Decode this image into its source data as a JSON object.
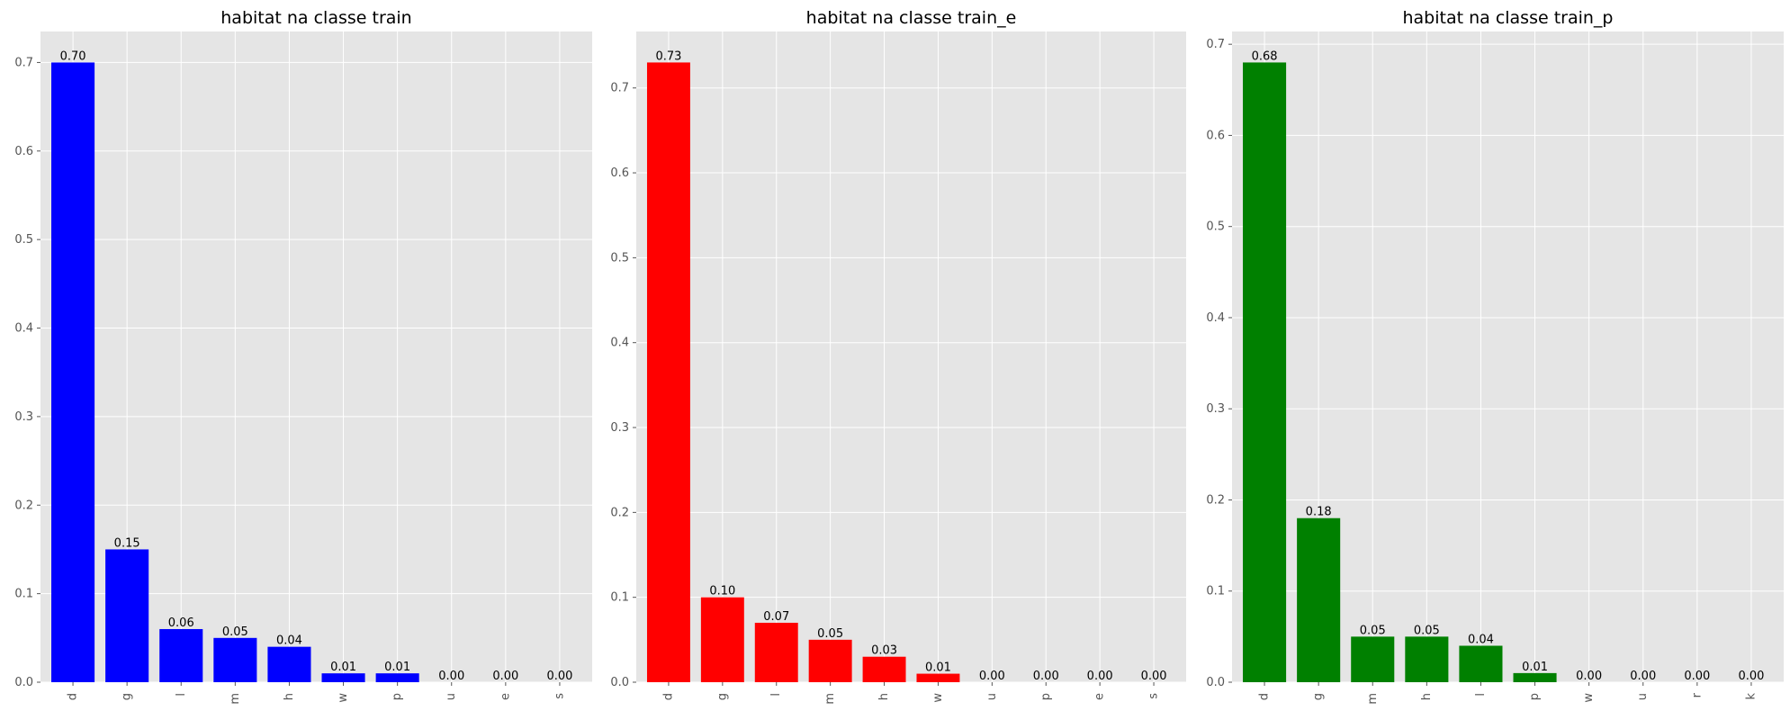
{
  "chart_data": [
    {
      "type": "bar",
      "title": "habitat na classe train",
      "xlabel": "",
      "ylabel": "",
      "categories": [
        "d",
        "g",
        "l",
        "m",
        "h",
        "w",
        "p",
        "u",
        "e",
        "s"
      ],
      "values": [
        0.7,
        0.15,
        0.06,
        0.05,
        0.04,
        0.01,
        0.01,
        0.0,
        0.0,
        0.0
      ],
      "value_labels": [
        "0.70",
        "0.15",
        "0.06",
        "0.05",
        "0.04",
        "0.01",
        "0.01",
        "0.00",
        "0.00",
        "0.00"
      ],
      "yticks": [
        "0.0",
        "0.1",
        "0.2",
        "0.3",
        "0.4",
        "0.5",
        "0.6",
        "0.7"
      ],
      "ylim": [
        0,
        0.735
      ],
      "color": "#0000ff",
      "grid": true
    },
    {
      "type": "bar",
      "title": "habitat na classe train_e",
      "xlabel": "",
      "ylabel": "",
      "categories": [
        "d",
        "g",
        "l",
        "m",
        "h",
        "w",
        "u",
        "p",
        "e",
        "s"
      ],
      "values": [
        0.73,
        0.1,
        0.07,
        0.05,
        0.03,
        0.01,
        0.0,
        0.0,
        0.0,
        0.0
      ],
      "value_labels": [
        "0.73",
        "0.10",
        "0.07",
        "0.05",
        "0.03",
        "0.01",
        "0.00",
        "0.00",
        "0.00",
        "0.00"
      ],
      "yticks": [
        "0.0",
        "0.1",
        "0.2",
        "0.3",
        "0.4",
        "0.5",
        "0.6",
        "0.7"
      ],
      "ylim": [
        0,
        0.7665
      ],
      "color": "#ff0000",
      "grid": true
    },
    {
      "type": "bar",
      "title": "habitat na classe train_p",
      "xlabel": "",
      "ylabel": "",
      "categories": [
        "d",
        "g",
        "m",
        "h",
        "l",
        "p",
        "w",
        "u",
        "r",
        "k"
      ],
      "values": [
        0.68,
        0.18,
        0.05,
        0.05,
        0.04,
        0.01,
        0.0,
        0.0,
        0.0,
        0.0
      ],
      "value_labels": [
        "0.68",
        "0.18",
        "0.05",
        "0.05",
        "0.04",
        "0.01",
        "0.00",
        "0.00",
        "0.00",
        "0.00"
      ],
      "yticks": [
        "0.0",
        "0.1",
        "0.2",
        "0.3",
        "0.4",
        "0.5",
        "0.6",
        "0.7"
      ],
      "ylim": [
        0,
        0.714
      ],
      "color": "#008000",
      "grid": true
    }
  ],
  "style": {
    "axes_background": "#e5e5e5",
    "grid_color": "#ffffff",
    "tick_label_color": "#555555",
    "text_color": "#000000"
  }
}
